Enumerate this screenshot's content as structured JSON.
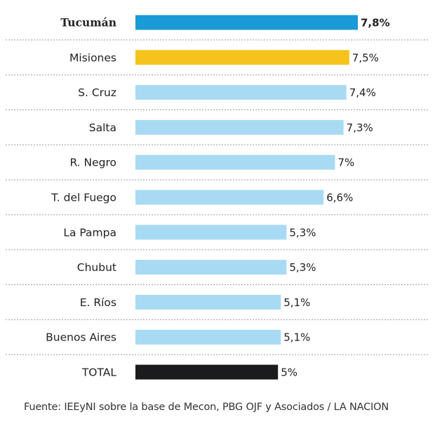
{
  "chart_data": {
    "type": "bar",
    "orientation": "horizontal",
    "categories": [
      "Tucumán",
      "Misiones",
      "S. Cruz",
      "Salta",
      "R. Negro",
      "T. del Fuego",
      "La Pampa",
      "Chubut",
      "E. Ríos",
      "Buenos Aires",
      "TOTAL"
    ],
    "values": [
      7.8,
      7.5,
      7.4,
      7.3,
      7.0,
      6.6,
      5.3,
      5.3,
      5.1,
      5.1,
      5.0
    ],
    "value_labels": [
      "7,8%",
      "7,5%",
      "7,4%",
      "7,3%",
      "7%",
      "6,6%",
      "5,3%",
      "5,3%",
      "5,1%",
      "5,1%",
      "5%"
    ],
    "bar_colors": [
      "#1a9ad6",
      "#f5c31c",
      "#a9daf3",
      "#a9daf3",
      "#a9daf3",
      "#a9daf3",
      "#a9daf3",
      "#a9daf3",
      "#a9daf3",
      "#a9daf3",
      "#1b1b1d"
    ],
    "highlight": "Tucumán",
    "xlim": [
      0,
      7.8
    ],
    "title": "",
    "xlabel": "",
    "ylabel": "",
    "grid": false
  },
  "source": "Fuente: IEEyNI sobre la base de Mecon, PBG OJF y Asociados / LA NACION",
  "colors": {
    "separator": "#9a9a9a",
    "text": "#222222"
  }
}
